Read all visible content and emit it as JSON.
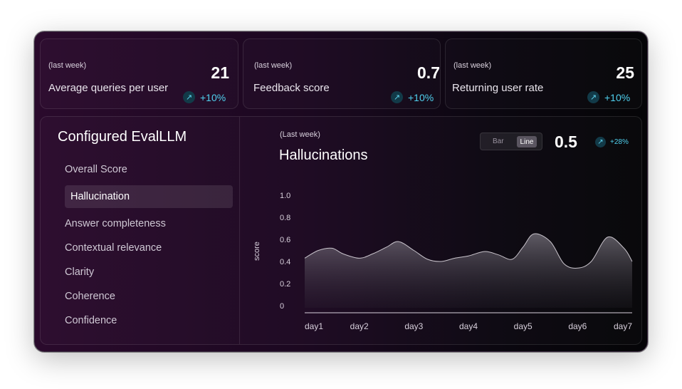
{
  "stats": [
    {
      "sub": "(last week)",
      "label": "Average queries per user",
      "value": "21",
      "delta": "+10%"
    },
    {
      "sub": "(last week)",
      "label": "Feedback score",
      "value": "0.7",
      "delta": "+10%"
    },
    {
      "sub": "(last week)",
      "label": "Returning user rate",
      "value": "25",
      "delta": "+10%"
    }
  ],
  "sidebar": {
    "title": "Configured EvalLLM",
    "items": [
      {
        "label": "Overall Score",
        "active": false
      },
      {
        "label": "Hallucination",
        "active": true
      },
      {
        "label": "Answer completeness",
        "active": false
      },
      {
        "label": "Contextual relevance",
        "active": false
      },
      {
        "label": "Clarity",
        "active": false
      },
      {
        "label": "Coherence",
        "active": false
      },
      {
        "label": "Confidence",
        "active": false
      }
    ]
  },
  "chart_panel": {
    "sub": "(Last week)",
    "title": "Hallucinations",
    "toggle": {
      "bar": "Bar",
      "line": "Line",
      "selected": "Line"
    },
    "value": "0.5",
    "delta": "+28%"
  },
  "icons": {
    "trend": "arrow-up-right-icon"
  },
  "colors": {
    "accent": "#4fd0ee",
    "delta_bg": "#123a48"
  },
  "chart_data": {
    "type": "area",
    "title": "Hallucinations",
    "ylabel": "score",
    "ylim": [
      0,
      1.0
    ],
    "yticks": [
      "1.0",
      "0.8",
      "0.6",
      "0.4",
      "0.2",
      "0"
    ],
    "ytick_values": [
      1.0,
      0.8,
      0.6,
      0.4,
      0.2,
      0
    ],
    "categories": [
      "day1",
      "day2",
      "day3",
      "day4",
      "day5",
      "day6",
      "day7"
    ],
    "x": [
      0,
      0.25,
      0.5,
      0.7,
      1.0,
      1.25,
      1.5,
      1.72,
      2.0,
      2.25,
      2.5,
      2.75,
      3.0,
      3.3,
      3.55,
      3.8,
      4.0,
      4.2,
      4.5,
      4.75,
      5.0,
      5.25,
      5.55,
      5.85,
      6.0
    ],
    "values": [
      0.43,
      0.5,
      0.52,
      0.47,
      0.43,
      0.47,
      0.53,
      0.58,
      0.5,
      0.42,
      0.4,
      0.43,
      0.45,
      0.49,
      0.46,
      0.42,
      0.53,
      0.65,
      0.58,
      0.38,
      0.34,
      0.4,
      0.62,
      0.52,
      0.4
    ],
    "grid": false,
    "legend": "none"
  }
}
